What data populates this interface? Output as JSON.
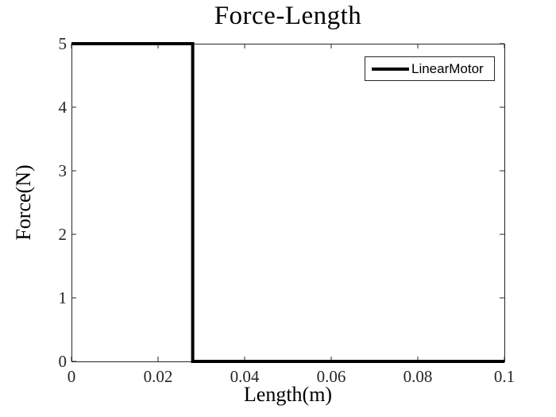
{
  "chart_data": {
    "type": "line",
    "title": "Force-Length",
    "xlabel": "Length(m)",
    "ylabel": "Force(N)",
    "xlim": [
      0,
      0.1
    ],
    "ylim": [
      0,
      5
    ],
    "xticks": [
      0,
      0.02,
      0.04,
      0.06,
      0.08,
      0.1
    ],
    "xtick_labels": [
      "0",
      "0.02",
      "0.04",
      "0.06",
      "0.08",
      "0.1"
    ],
    "yticks": [
      0,
      1,
      2,
      3,
      4,
      5
    ],
    "ytick_labels": [
      "0",
      "1",
      "2",
      "3",
      "4",
      "5"
    ],
    "grid": false,
    "box": true,
    "tick_direction": "in",
    "legend": {
      "position": "top-right",
      "entries": [
        {
          "label": "LinearMotor",
          "color": "#000000",
          "line_width": 4
        }
      ]
    },
    "series": [
      {
        "name": "LinearMotor",
        "color": "#000000",
        "line_width": 4,
        "points": [
          [
            0,
            5
          ],
          [
            0.028,
            5
          ],
          [
            0.028,
            0
          ],
          [
            0.1,
            0
          ]
        ]
      }
    ],
    "colors": {
      "line": "#000000",
      "axis": "#262626",
      "tick_label": "#262626",
      "background": "#ffffff"
    }
  }
}
